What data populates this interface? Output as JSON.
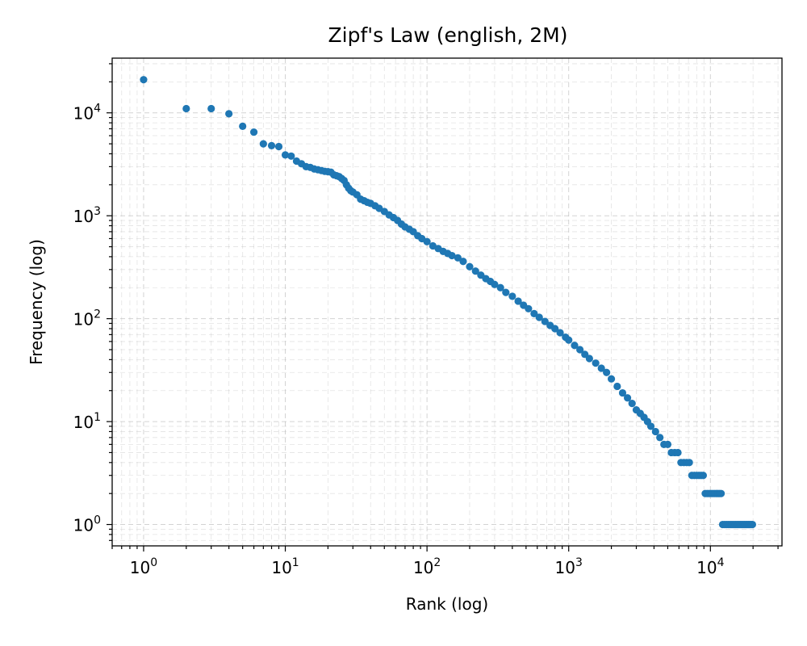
{
  "chart_data": {
    "type": "scatter",
    "title": "Zipf's Law (english, 2M)",
    "xlabel": "Rank (log)",
    "ylabel": "Frequency (log)",
    "xscale": "log",
    "yscale": "log",
    "xlim": [
      0.6,
      32000
    ],
    "ylim": [
      0.62,
      34000
    ],
    "grid": true,
    "color": "#1f77b4",
    "x_ticks": [
      {
        "base": "10",
        "exp": "0",
        "value": 1
      },
      {
        "base": "10",
        "exp": "1",
        "value": 10
      },
      {
        "base": "10",
        "exp": "2",
        "value": 100
      },
      {
        "base": "10",
        "exp": "3",
        "value": 1000
      },
      {
        "base": "10",
        "exp": "4",
        "value": 10000
      }
    ],
    "y_ticks": [
      {
        "base": "10",
        "exp": "0",
        "value": 1
      },
      {
        "base": "10",
        "exp": "1",
        "value": 10
      },
      {
        "base": "10",
        "exp": "2",
        "value": 100
      },
      {
        "base": "10",
        "exp": "3",
        "value": 1000
      },
      {
        "base": "10",
        "exp": "4",
        "value": 10000
      }
    ],
    "points": [
      [
        1,
        21000
      ],
      [
        2,
        11000
      ],
      [
        3,
        11000
      ],
      [
        4,
        9800
      ],
      [
        5,
        7400
      ],
      [
        6,
        6500
      ],
      [
        7,
        5000
      ],
      [
        8,
        4800
      ],
      [
        9,
        4700
      ],
      [
        10,
        3900
      ],
      [
        11,
        3800
      ],
      [
        12,
        3400
      ],
      [
        13,
        3200
      ],
      [
        14,
        3000
      ],
      [
        15,
        2950
      ],
      [
        16,
        2850
      ],
      [
        17,
        2800
      ],
      [
        18,
        2750
      ],
      [
        19,
        2700
      ],
      [
        20,
        2680
      ],
      [
        21,
        2650
      ],
      [
        22,
        2500
      ],
      [
        23,
        2450
      ],
      [
        24,
        2400
      ],
      [
        25,
        2300
      ],
      [
        26,
        2200
      ],
      [
        27,
        2000
      ],
      [
        28,
        1850
      ],
      [
        29,
        1750
      ],
      [
        30,
        1700
      ],
      [
        32,
        1600
      ],
      [
        34,
        1450
      ],
      [
        36,
        1400
      ],
      [
        38,
        1350
      ],
      [
        40,
        1320
      ],
      [
        43,
        1250
      ],
      [
        46,
        1180
      ],
      [
        50,
        1100
      ],
      [
        54,
        1020
      ],
      [
        58,
        960
      ],
      [
        62,
        900
      ],
      [
        66,
        830
      ],
      [
        70,
        780
      ],
      [
        75,
        740
      ],
      [
        80,
        700
      ],
      [
        86,
        640
      ],
      [
        92,
        600
      ],
      [
        100,
        560
      ],
      [
        110,
        510
      ],
      [
        120,
        480
      ],
      [
        130,
        450
      ],
      [
        140,
        430
      ],
      [
        150,
        410
      ],
      [
        165,
        390
      ],
      [
        180,
        360
      ],
      [
        200,
        320
      ],
      [
        220,
        290
      ],
      [
        240,
        265
      ],
      [
        260,
        245
      ],
      [
        280,
        230
      ],
      [
        300,
        215
      ],
      [
        330,
        200
      ],
      [
        360,
        180
      ],
      [
        400,
        165
      ],
      [
        440,
        148
      ],
      [
        480,
        135
      ],
      [
        520,
        125
      ],
      [
        570,
        112
      ],
      [
        620,
        103
      ],
      [
        680,
        94
      ],
      [
        740,
        86
      ],
      [
        800,
        80
      ],
      [
        870,
        73
      ],
      [
        950,
        66
      ],
      [
        1000,
        62
      ],
      [
        1100,
        55
      ],
      [
        1200,
        50
      ],
      [
        1300,
        45
      ],
      [
        1400,
        41
      ],
      [
        1550,
        37
      ],
      [
        1700,
        33
      ],
      [
        1850,
        30
      ],
      [
        2000,
        26
      ],
      [
        2200,
        22
      ],
      [
        2400,
        19
      ],
      [
        2600,
        17
      ],
      [
        2800,
        15
      ],
      [
        3000,
        13
      ],
      [
        3200,
        12
      ],
      [
        3400,
        11
      ],
      [
        3600,
        10
      ],
      [
        3800,
        9
      ],
      [
        4100,
        8
      ],
      [
        4400,
        7
      ],
      [
        4700,
        6
      ],
      [
        5000,
        6
      ],
      [
        5300,
        5
      ],
      [
        5600,
        5
      ],
      [
        5900,
        5
      ],
      [
        6200,
        4
      ],
      [
        6500,
        4
      ],
      [
        6800,
        4
      ],
      [
        7100,
        4
      ],
      [
        7400,
        3
      ],
      [
        7700,
        3
      ],
      [
        8000,
        3
      ],
      [
        8300,
        3
      ],
      [
        8600,
        3
      ],
      [
        8900,
        3
      ],
      [
        9200,
        2
      ],
      [
        9500,
        2
      ],
      [
        9800,
        2
      ],
      [
        10100,
        2
      ],
      [
        10400,
        2
      ],
      [
        10700,
        2
      ],
      [
        11000,
        2
      ],
      [
        11300,
        2
      ],
      [
        11600,
        2
      ],
      [
        11900,
        2
      ],
      [
        12200,
        1
      ],
      [
        12600,
        1
      ],
      [
        13000,
        1
      ],
      [
        13400,
        1
      ],
      [
        13800,
        1
      ],
      [
        14200,
        1
      ],
      [
        14600,
        1
      ],
      [
        15000,
        1
      ],
      [
        15400,
        1
      ],
      [
        15800,
        1
      ],
      [
        16200,
        1
      ],
      [
        16600,
        1
      ],
      [
        17000,
        1
      ],
      [
        17400,
        1
      ],
      [
        17800,
        1
      ],
      [
        18200,
        1
      ],
      [
        18600,
        1
      ],
      [
        19000,
        1
      ],
      [
        19400,
        1
      ],
      [
        19800,
        1
      ]
    ]
  }
}
